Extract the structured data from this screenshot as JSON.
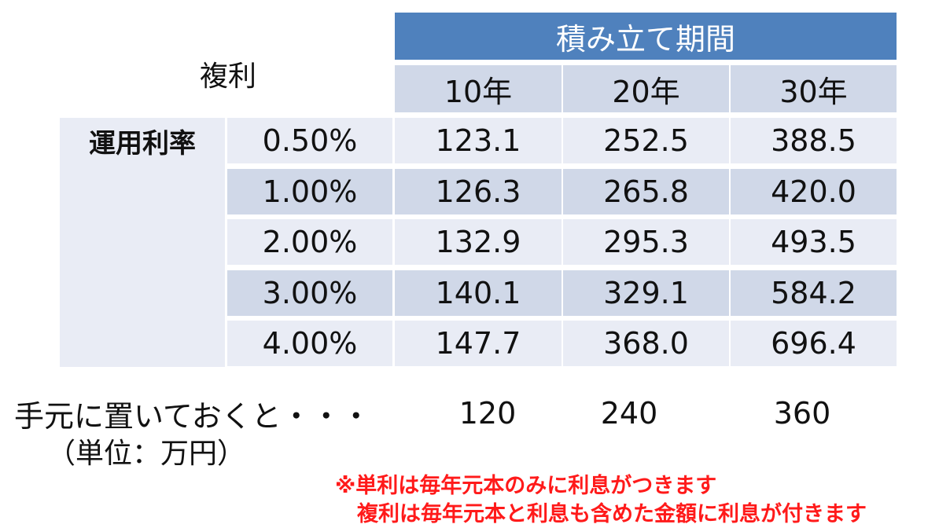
{
  "header": {
    "period_label": "積み立て期間",
    "corner_label": "複利",
    "years": [
      "10年",
      "20年",
      "30年"
    ]
  },
  "row_group_label": "運用利率",
  "rows": [
    {
      "rate": "0.50%",
      "values": [
        "123.1",
        "252.5",
        "388.5"
      ]
    },
    {
      "rate": "1.00%",
      "values": [
        "126.3",
        "265.8",
        "420.0"
      ]
    },
    {
      "rate": "2.00%",
      "values": [
        "132.9",
        "295.3",
        "493.5"
      ]
    },
    {
      "rate": "3.00%",
      "values": [
        "140.1",
        "329.1",
        "584.2"
      ]
    },
    {
      "rate": "4.00%",
      "values": [
        "147.7",
        "368.0",
        "696.4"
      ]
    }
  ],
  "bottom": {
    "label": "手元に置いておくと・・・",
    "unit": "（単位：万円）",
    "values": [
      "120",
      "240",
      "360"
    ]
  },
  "notes": {
    "line1": "※単利は毎年元本のみに利息がつきます",
    "line2": "複利は毎年元本と利息も含めた金額に利息が付きます"
  },
  "colors": {
    "header_blue": "#4f81bd",
    "row_light": "#e9ecf5",
    "row_dark": "#d0d8e8",
    "note_red": "#ff1a1a"
  }
}
